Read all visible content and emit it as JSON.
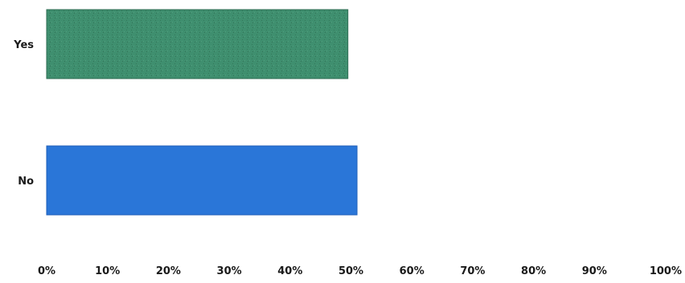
{
  "chart_data": {
    "type": "bar",
    "orientation": "horizontal",
    "categories": [
      "Yes",
      "No"
    ],
    "values": [
      49.5,
      51
    ],
    "bar_colors": [
      "#3f8f6f",
      "#2a76d8"
    ],
    "xlim": [
      0,
      100
    ],
    "x_ticks": [
      "0%",
      "10%",
      "20%",
      "30%",
      "40%",
      "50%",
      "60%",
      "70%",
      "80%",
      "90%",
      "100%"
    ],
    "title": "",
    "xlabel": "",
    "ylabel": "",
    "grid": false,
    "legend": "none"
  }
}
